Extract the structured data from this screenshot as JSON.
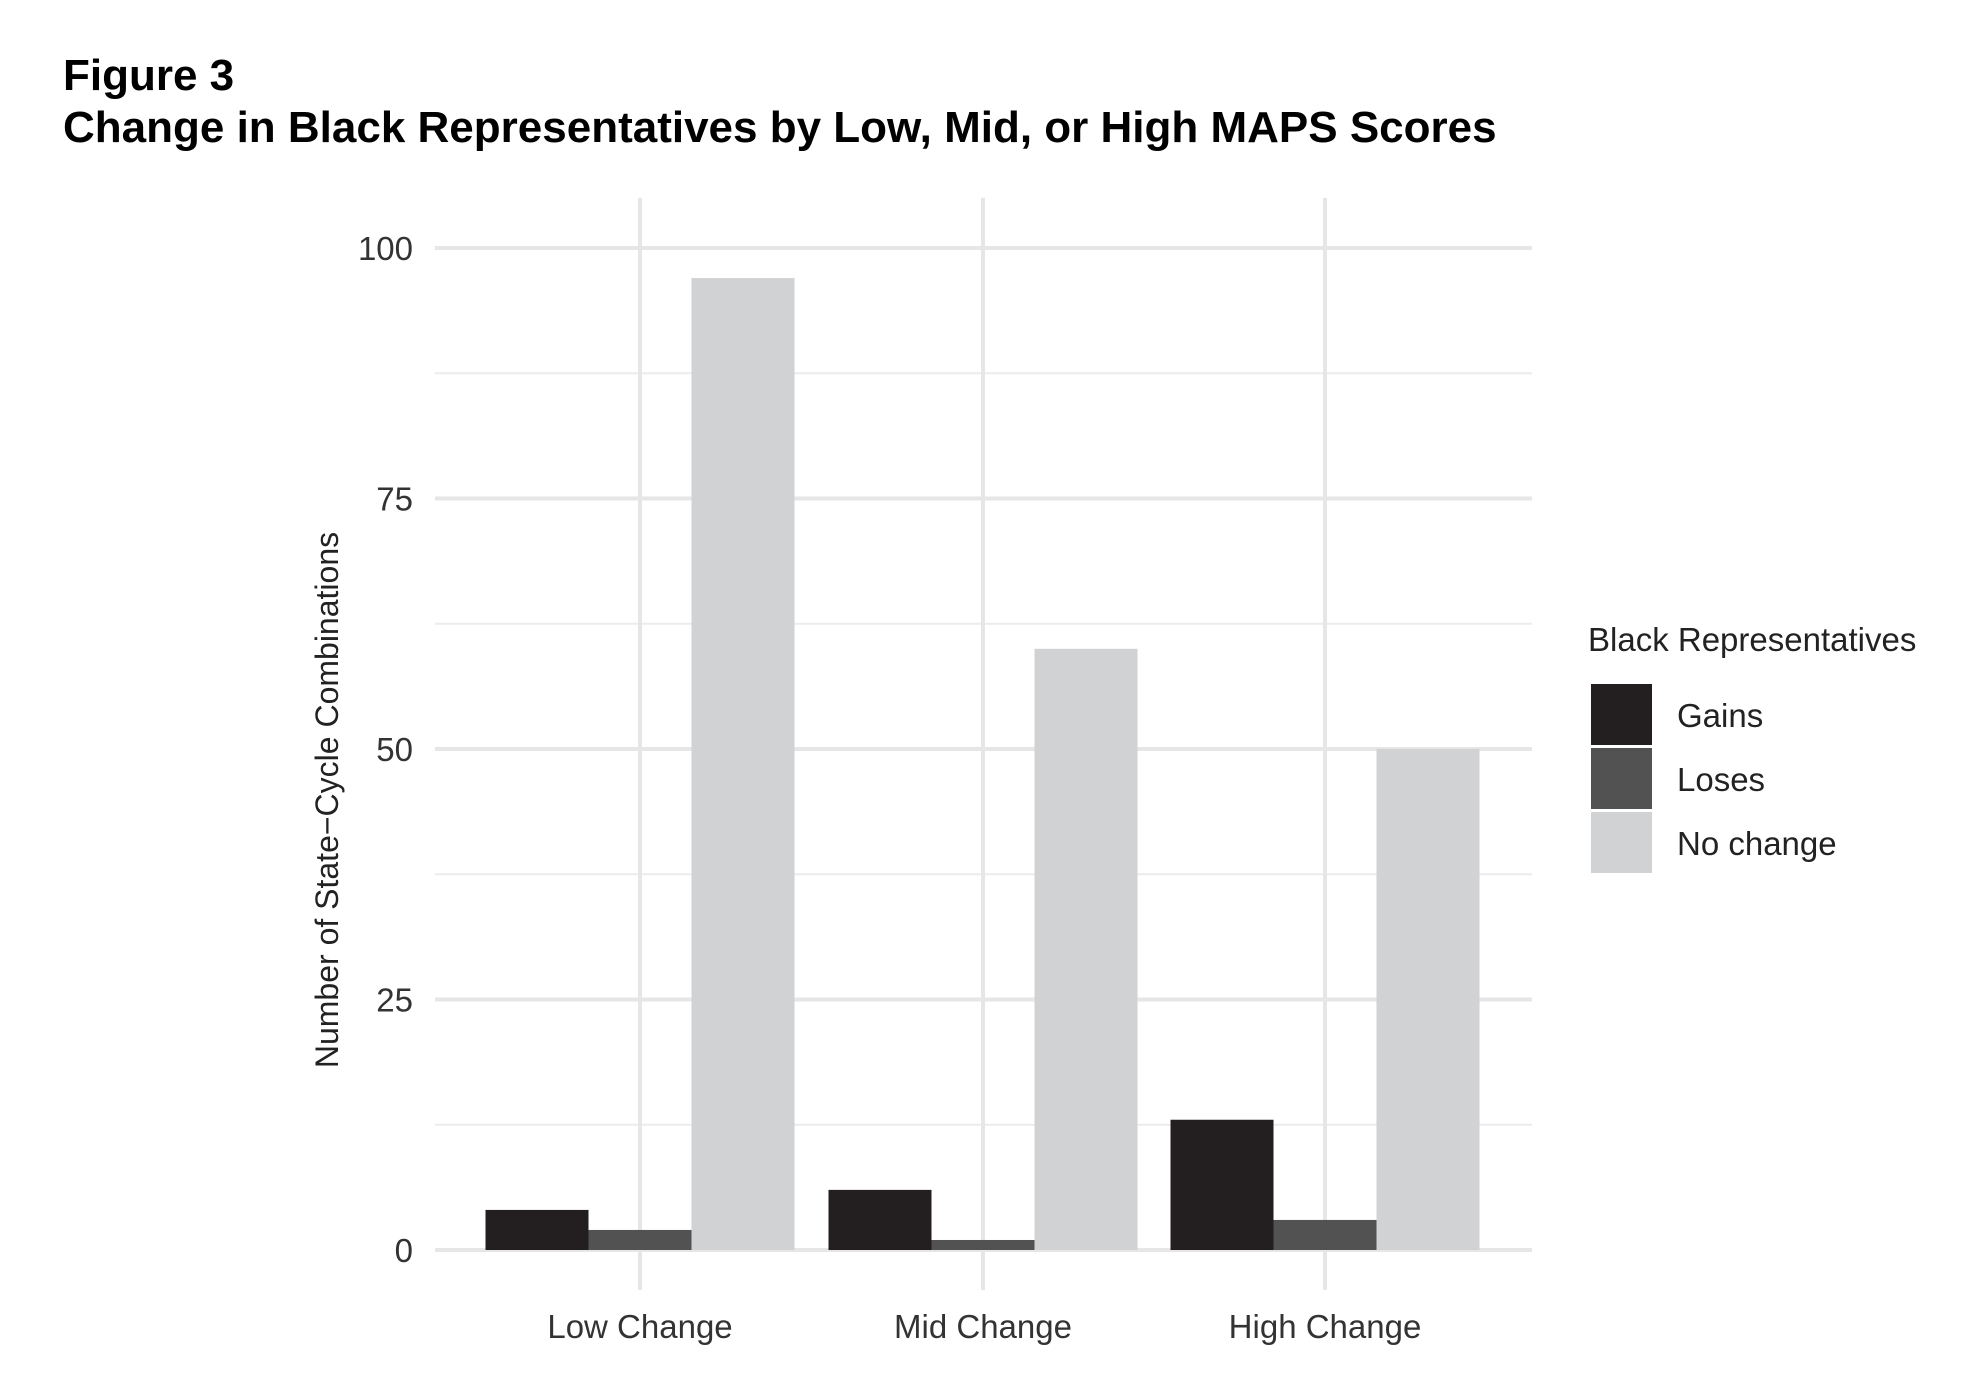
{
  "figure": {
    "label": "Figure 3",
    "title": "Change in Black Representatives by Low, Mid, or High MAPS Scores"
  },
  "chart_data": {
    "type": "bar",
    "layout": "grouped",
    "categories": [
      "Low Change",
      "Mid Change",
      "High Change"
    ],
    "series": [
      {
        "name": "Gains",
        "color": "#231f20",
        "values": [
          4,
          6,
          13
        ]
      },
      {
        "name": "Loses",
        "color": "#525252",
        "values": [
          2,
          1,
          3
        ]
      },
      {
        "name": "No change",
        "color": "#d1d2d4",
        "values": [
          97,
          60,
          50
        ]
      }
    ],
    "ylabel": "Number of State−Cycle Combinations",
    "xlabel": "",
    "ylim": [
      0,
      105
    ],
    "yticks": [
      0,
      25,
      50,
      75,
      100
    ],
    "ytick_labels": [
      "0",
      "25",
      "50",
      "75",
      "100"
    ],
    "grid": true,
    "legend": {
      "title": "Black Representatives",
      "position": "right"
    }
  }
}
